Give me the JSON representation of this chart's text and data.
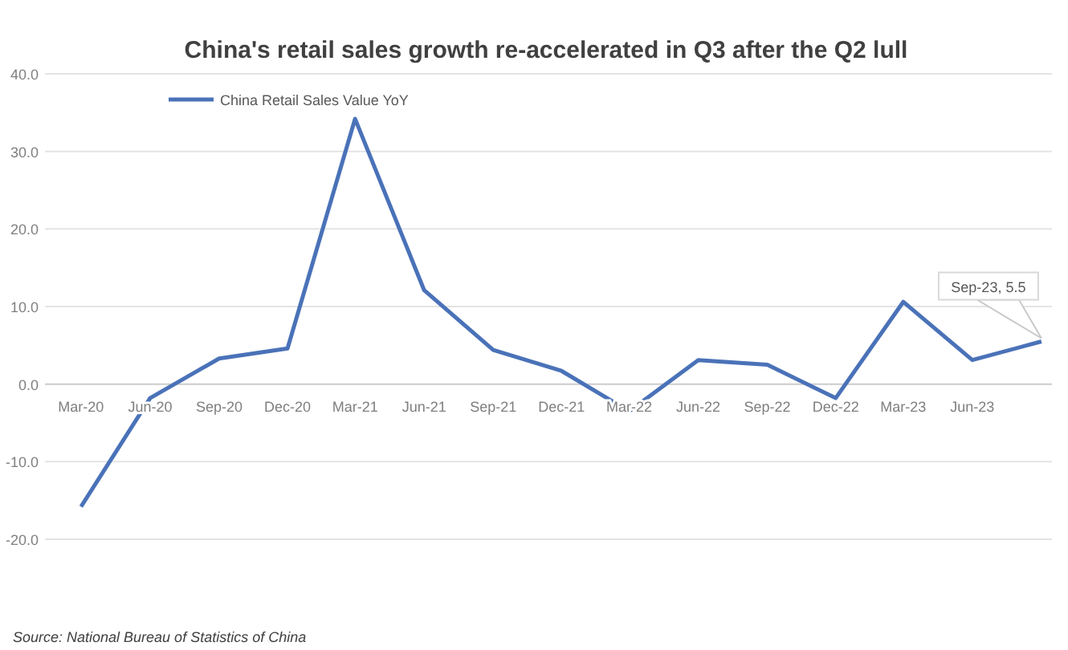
{
  "chart_data": {
    "type": "line",
    "title": "China's retail sales growth re-accelerated in Q3 after the Q2 lull",
    "x": [
      "2020-03",
      "2020-06",
      "2020-09",
      "2020-12",
      "2021-03",
      "2021-06",
      "2021-09",
      "2021-12",
      "2022-03",
      "2022-06",
      "2022-09",
      "2022-12",
      "2023-03",
      "2023-06",
      "2023-09"
    ],
    "xlim": [
      "2020-01-13",
      "2023-09-15"
    ],
    "xticks": [
      {
        "value": "2020-03",
        "label": "Mar-20"
      },
      {
        "value": "2020-06",
        "label": "Jun-20"
      },
      {
        "value": "2020-09",
        "label": "Sep-20"
      },
      {
        "value": "2020-12",
        "label": "Dec-20"
      },
      {
        "value": "2021-03",
        "label": "Mar-21"
      },
      {
        "value": "2021-06",
        "label": "Jun-21"
      },
      {
        "value": "2021-09",
        "label": "Sep-21"
      },
      {
        "value": "2021-12",
        "label": "Dec-21"
      },
      {
        "value": "2022-03",
        "label": "Mar-22"
      },
      {
        "value": "2022-06",
        "label": "Jun-22"
      },
      {
        "value": "2022-09",
        "label": "Sep-22"
      },
      {
        "value": "2022-12",
        "label": "Dec-22"
      },
      {
        "value": "2023-03",
        "label": "Mar-23"
      },
      {
        "value": "2023-06",
        "label": "Jun-23"
      }
    ],
    "series": [
      {
        "name": "China Retail Sales Value YoY",
        "color": "#4a72b8",
        "values": [
          -15.8,
          -1.8,
          3.3,
          4.6,
          34.2,
          12.1,
          4.4,
          1.7,
          -3.5,
          3.1,
          2.5,
          -1.8,
          10.6,
          3.1,
          5.5
        ]
      }
    ],
    "ylim": [
      -20,
      40
    ],
    "yticks": [
      {
        "value": -20,
        "label": "-20.0"
      },
      {
        "value": -10,
        "label": "-10.0"
      },
      {
        "value": 0,
        "label": "0.0"
      },
      {
        "value": 10,
        "label": "10.0"
      },
      {
        "value": 20,
        "label": "20.0"
      },
      {
        "value": 30,
        "label": "30.0"
      },
      {
        "value": 40,
        "label": "40.0"
      }
    ],
    "grid": "y",
    "legend": "top left",
    "marker": "none",
    "line_style": "solid",
    "annotations": [
      "Sep-23, 5.5",
      "Source: National Bureau of Statistics of China"
    ]
  }
}
